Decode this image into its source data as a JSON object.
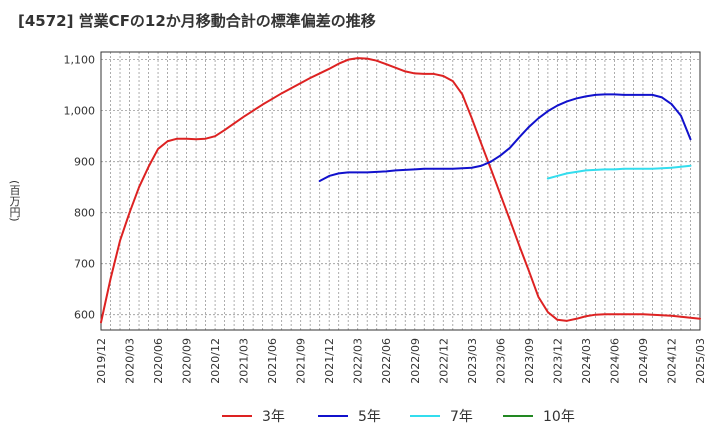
{
  "chart_data": {
    "type": "line",
    "title": "[4572]  営業CFの12か月移動合計の標準偏差の推移",
    "ylabel": "(百万円)",
    "xlabel": "",
    "ylim": [
      570,
      1115
    ],
    "yticks": [
      600,
      700,
      800,
      900,
      1000,
      1100
    ],
    "ytick_labels": [
      "600",
      "700",
      "800",
      "900",
      "1,000",
      "1,100"
    ],
    "xticks": [
      "2019/12",
      "2020/03",
      "2020/06",
      "2020/09",
      "2020/12",
      "2021/03",
      "2021/06",
      "2021/09",
      "2021/12",
      "2022/03",
      "2022/06",
      "2022/09",
      "2022/12",
      "2023/03",
      "2023/06",
      "2023/09",
      "2023/12",
      "2024/03",
      "2024/06",
      "2024/09",
      "2024/12",
      "2025/03"
    ],
    "grid": true,
    "legend_position": "bottom",
    "series": [
      {
        "name": "3年",
        "color": "#dd2222",
        "start": "2019/12",
        "values": [
          585,
          670,
          745,
          800,
          850,
          890,
          925,
          940,
          945,
          945,
          944,
          945,
          950,
          962,
          975,
          988,
          1000,
          1012,
          1023,
          1034,
          1044,
          1054,
          1064,
          1073,
          1082,
          1092,
          1100,
          1103,
          1102,
          1098,
          1091,
          1084,
          1077,
          1073,
          1072,
          1072,
          1068,
          1058,
          1032,
          985,
          935,
          886,
          836,
          786,
          735,
          686,
          635,
          605,
          590,
          588,
          592,
          597,
          600,
          601,
          601,
          601,
          601,
          601,
          600,
          599,
          598,
          596,
          594,
          592
        ]
      },
      {
        "name": "5年",
        "color": "#1111cc",
        "start": "2021/11",
        "values": [
          862,
          872,
          877,
          879,
          879,
          879,
          880,
          881,
          883,
          884,
          885,
          886,
          886,
          886,
          886,
          887,
          888,
          892,
          900,
          912,
          927,
          948,
          968,
          985,
          999,
          1010,
          1018,
          1024,
          1028,
          1031,
          1032,
          1032,
          1031,
          1031,
          1031,
          1031,
          1026,
          1013,
          990,
          944
        ]
      },
      {
        "name": "7年",
        "color": "#33ddee",
        "start": "2023/11",
        "values": [
          867,
          872,
          877,
          880,
          883,
          884,
          885,
          885,
          886,
          886,
          886,
          886,
          887,
          888,
          890,
          892
        ]
      },
      {
        "name": "10年",
        "color": "#228822",
        "start": "",
        "values": []
      }
    ]
  }
}
